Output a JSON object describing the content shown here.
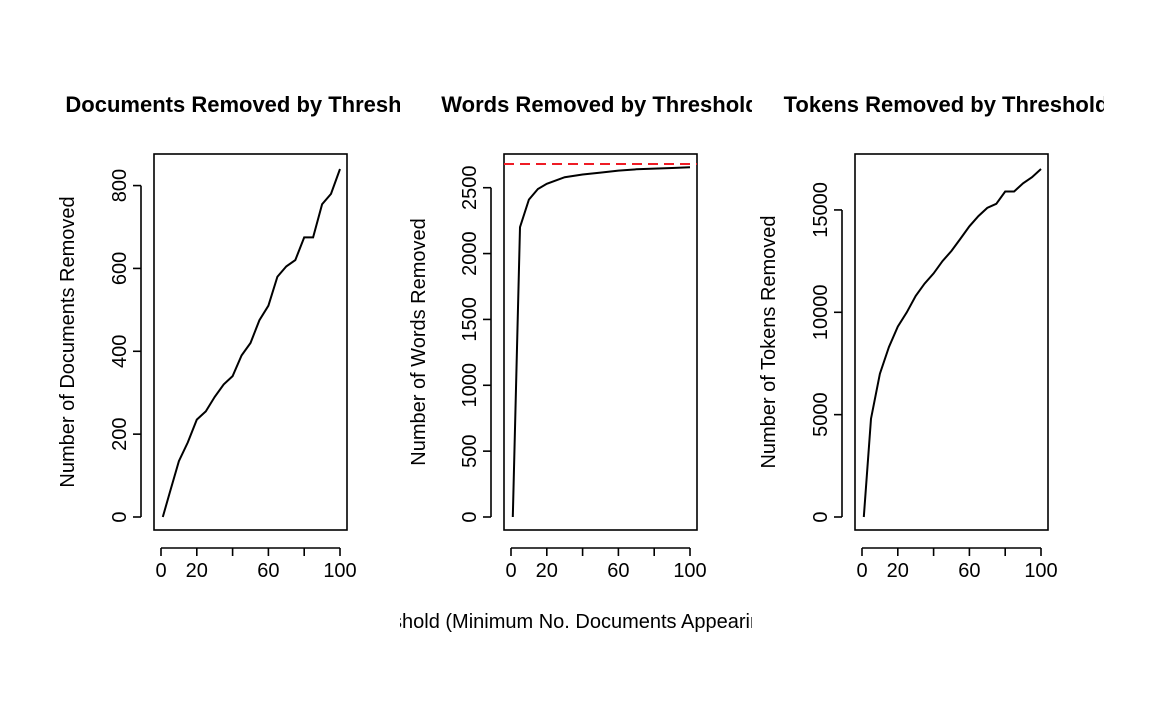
{
  "chart_data": [
    {
      "type": "line",
      "title": "Documents Removed by Threshold",
      "xlabel": "",
      "ylabel": "Number of Documents Removed",
      "xlim": [
        0,
        100
      ],
      "ylim": [
        0,
        840
      ],
      "xticks": [
        0,
        20,
        60,
        100
      ],
      "xticks_unlabeled": [
        40,
        80
      ],
      "yticks": [
        0,
        200,
        400,
        600,
        800
      ],
      "series": [
        {
          "x": [
            1,
            5,
            10,
            15,
            20,
            25,
            30,
            35,
            40,
            45,
            50,
            55,
            60,
            65,
            70,
            75,
            80,
            85,
            90,
            95,
            100
          ],
          "y": [
            0,
            60,
            135,
            180,
            235,
            255,
            290,
            320,
            340,
            390,
            420,
            475,
            510,
            580,
            605,
            620,
            675,
            675,
            755,
            780,
            840
          ]
        }
      ]
    },
    {
      "type": "line",
      "title": "Words Removed by Threshold",
      "xlabel": "Threshold (Minimum No. Documents Appearing In)",
      "ylabel": "Number of Words Removed",
      "xlim": [
        0,
        100
      ],
      "ylim": [
        0,
        2680
      ],
      "xticks": [
        0,
        20,
        60,
        100
      ],
      "xticks_unlabeled": [
        40,
        80
      ],
      "yticks": [
        0,
        500,
        1000,
        1500,
        2000,
        2500
      ],
      "reference_line": {
        "y": 2680,
        "color": "#ee1c25",
        "style": "dashed"
      },
      "series": [
        {
          "x": [
            1,
            5,
            10,
            15,
            20,
            30,
            40,
            50,
            60,
            70,
            80,
            90,
            100
          ],
          "y": [
            0,
            2200,
            2410,
            2490,
            2530,
            2580,
            2600,
            2615,
            2630,
            2640,
            2645,
            2650,
            2655
          ]
        }
      ]
    },
    {
      "type": "line",
      "title": "Tokens Removed by Threshold",
      "xlabel": "",
      "ylabel": "Number of Tokens Removed",
      "xlim": [
        0,
        100
      ],
      "ylim": [
        0,
        17000
      ],
      "xticks": [
        0,
        20,
        60,
        100
      ],
      "xticks_unlabeled": [
        40,
        80
      ],
      "yticks": [
        0,
        5000,
        10000,
        15000
      ],
      "series": [
        {
          "x": [
            1,
            5,
            10,
            15,
            20,
            25,
            30,
            35,
            40,
            45,
            50,
            55,
            60,
            65,
            70,
            75,
            80,
            85,
            90,
            95,
            100
          ],
          "y": [
            0,
            4800,
            7000,
            8300,
            9300,
            10000,
            10800,
            11400,
            11900,
            12500,
            13000,
            13600,
            14200,
            14700,
            15100,
            15300,
            15900,
            15900,
            16300,
            16600,
            17000
          ]
        }
      ]
    }
  ],
  "colors": {
    "line": "#000000",
    "reference_line": "#ee1c25",
    "background": "#ffffff"
  }
}
